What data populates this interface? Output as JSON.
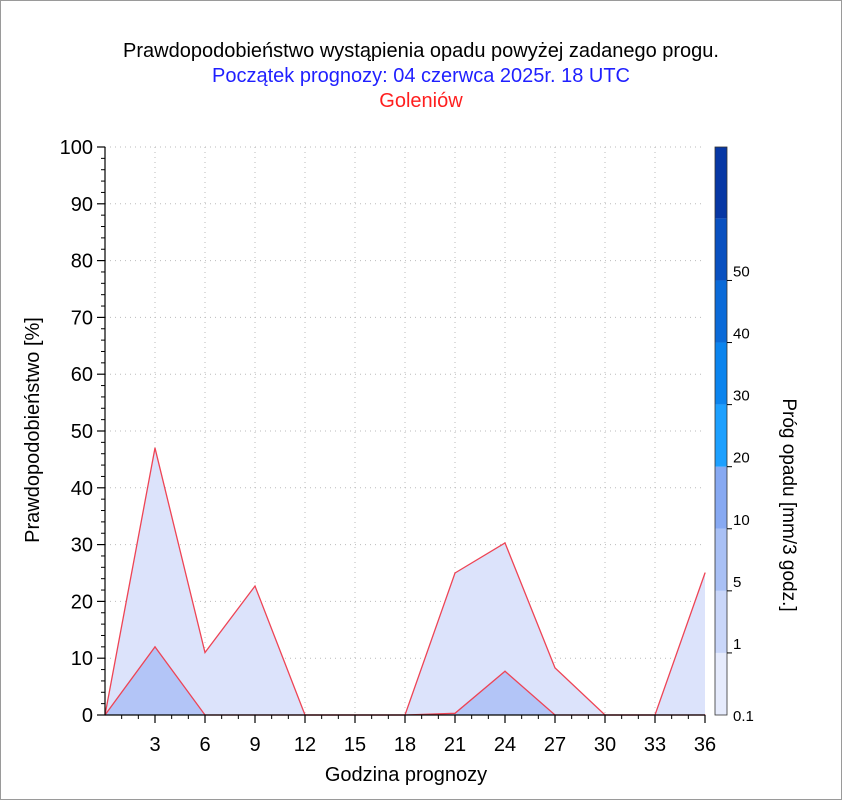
{
  "header": {
    "title": "Prawdopodobieństwo wystąpienia opadu powyżej zadanego progu.",
    "subtitle": "Początek prognozy: 04 czerwca 2025r. 18 UTC",
    "location": "Goleniów"
  },
  "chart_data": {
    "type": "area",
    "title": "Prawdopodobieństwo wystąpienia opadu powyżej zadanego progu.",
    "subtitle": "Początek prognozy: 04 czerwca 2025r. 18 UTC",
    "location": "Goleniów",
    "xlabel": "Godzina prognozy",
    "ylabel": "Prawdopodobieństwo [%]",
    "xlim": [
      0,
      36
    ],
    "ylim": [
      0,
      100
    ],
    "xticks": [
      "3",
      "6",
      "9",
      "12",
      "15",
      "18",
      "21",
      "24",
      "27",
      "30",
      "33",
      "36"
    ],
    "yticks": [
      "0",
      "10",
      "20",
      "30",
      "40",
      "50",
      "60",
      "70",
      "80",
      "90",
      "100"
    ],
    "grid": true,
    "x": [
      0,
      3,
      6,
      9,
      12,
      15,
      18,
      21,
      24,
      27,
      30,
      33,
      36
    ],
    "series": [
      {
        "threshold": "0.1",
        "color": "#dce3fb",
        "values": [
          0,
          47,
          11,
          22.7,
          0,
          0,
          0,
          25,
          30.3,
          8.3,
          0,
          0,
          25
        ]
      },
      {
        "threshold": "1",
        "color": "#b3c5f7",
        "values": [
          0,
          12,
          0,
          0,
          0,
          0,
          0,
          0.3,
          7.7,
          0,
          0,
          0,
          0
        ]
      }
    ],
    "colorbar": {
      "label": "Próg opadu [mm/3 godz.]",
      "tick_labels": [
        "0.1",
        "1",
        "5",
        "10",
        "20",
        "30",
        "40",
        "50"
      ],
      "colors": [
        "#e6ebfc",
        "#c9d6f9",
        "#a9c0f5",
        "#87a9f2",
        "#1da0ff",
        "#0b84ee",
        "#0a6ad8",
        "#0950c0",
        "#0737a4"
      ]
    }
  }
}
